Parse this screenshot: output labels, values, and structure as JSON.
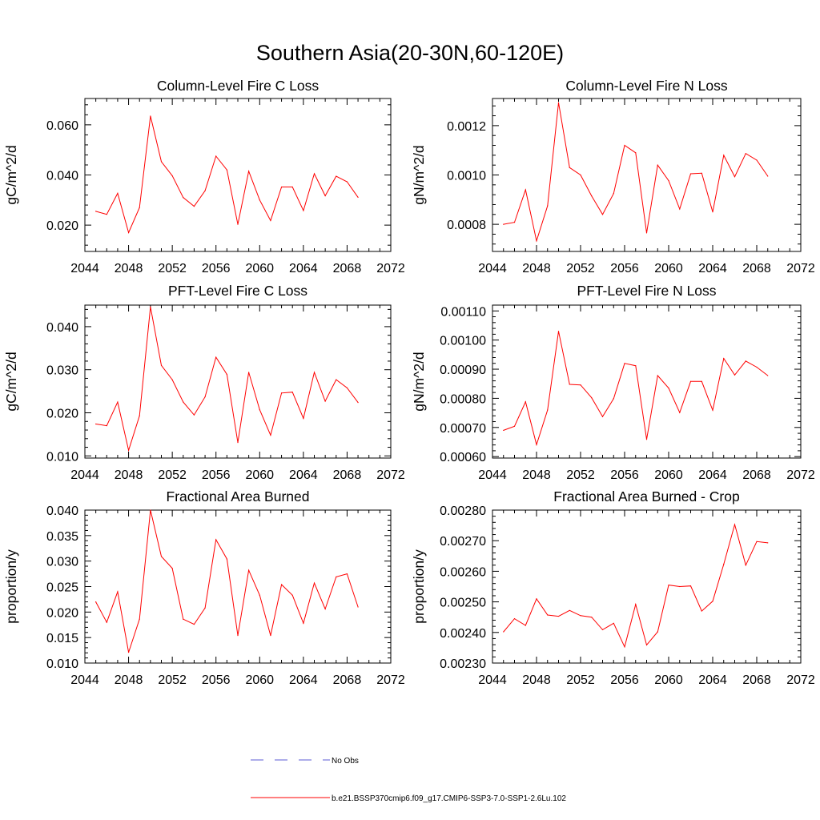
{
  "title": "Southern Asia(20-30N,60-120E)",
  "colors": {
    "model_line": "#ff0000",
    "obs_line": "#5b5bd6",
    "axis": "#000000"
  },
  "legend": {
    "obs_label": "No Obs",
    "model_label": "b.e21.BSSP370cmip6.f09_g17.CMIP6-SSP3-7.0-SSP1-2.6Lu.102"
  },
  "chart_data": [
    {
      "type": "line",
      "title": "Column-Level Fire C Loss",
      "xlabel": "",
      "ylabel": "gC/m^2/d",
      "xlim": [
        2044,
        2072
      ],
      "ylim": [
        0.0095,
        0.0705
      ],
      "xticks": [
        2044,
        2048,
        2052,
        2056,
        2060,
        2064,
        2068,
        2072
      ],
      "yticks": [
        0.02,
        0.04,
        0.06
      ],
      "yticklabels": [
        "0.020",
        "0.040",
        "0.060"
      ],
      "x": [
        2045,
        2046,
        2047,
        2048,
        2049,
        2050,
        2051,
        2052,
        2053,
        2054,
        2055,
        2056,
        2057,
        2058,
        2059,
        2060,
        2061,
        2062,
        2063,
        2064,
        2065,
        2066,
        2067,
        2068,
        2069
      ],
      "series": [
        {
          "values": [
            0.0255,
            0.0243,
            0.0327,
            0.017,
            0.027,
            0.0635,
            0.0453,
            0.0397,
            0.031,
            0.0275,
            0.0337,
            0.0475,
            0.042,
            0.0203,
            0.0415,
            0.03,
            0.0218,
            0.0352,
            0.0352,
            0.0258,
            0.0405,
            0.0317,
            0.0395,
            0.0373,
            0.0311
          ]
        }
      ]
    },
    {
      "type": "line",
      "title": "Column-Level Fire N Loss",
      "xlabel": "",
      "ylabel": "gN/m^2/d",
      "xlim": [
        2044,
        2072
      ],
      "ylim": [
        0.00069,
        0.00131
      ],
      "xticks": [
        2044,
        2048,
        2052,
        2056,
        2060,
        2064,
        2068,
        2072
      ],
      "yticks": [
        0.0008,
        0.001,
        0.0012
      ],
      "yticklabels": [
        "0.0008",
        "0.0010",
        "0.0012"
      ],
      "x": [
        2045,
        2046,
        2047,
        2048,
        2049,
        2050,
        2051,
        2052,
        2053,
        2054,
        2055,
        2056,
        2057,
        2058,
        2059,
        2060,
        2061,
        2062,
        2063,
        2064,
        2065,
        2066,
        2067,
        2068,
        2069
      ],
      "series": [
        {
          "values": [
            0.0008,
            0.000808,
            0.00094,
            0.000733,
            0.000875,
            0.001293,
            0.00103,
            0.001,
            0.000915,
            0.00084,
            0.000925,
            0.00112,
            0.00109,
            0.000765,
            0.00104,
            0.000977,
            0.000862,
            0.001005,
            0.001007,
            0.00085,
            0.00108,
            0.000993,
            0.001087,
            0.00106,
            0.000995
          ]
        }
      ]
    },
    {
      "type": "line",
      "title": "PFT-Level Fire C Loss",
      "xlabel": "",
      "ylabel": "gC/m^2/d",
      "xlim": [
        2044,
        2072
      ],
      "ylim": [
        0.0095,
        0.045
      ],
      "xticks": [
        2044,
        2048,
        2052,
        2056,
        2060,
        2064,
        2068,
        2072
      ],
      "yticks": [
        0.01,
        0.02,
        0.03,
        0.04
      ],
      "yticklabels": [
        "0.010",
        "0.020",
        "0.030",
        "0.040"
      ],
      "x": [
        2045,
        2046,
        2047,
        2048,
        2049,
        2050,
        2051,
        2052,
        2053,
        2054,
        2055,
        2056,
        2057,
        2058,
        2059,
        2060,
        2061,
        2062,
        2063,
        2064,
        2065,
        2066,
        2067,
        2068,
        2069
      ],
      "series": [
        {
          "values": [
            0.0174,
            0.017,
            0.0225,
            0.0113,
            0.0193,
            0.0446,
            0.031,
            0.0277,
            0.0225,
            0.0195,
            0.0237,
            0.0329,
            0.0289,
            0.0131,
            0.0294,
            0.0207,
            0.0148,
            0.0246,
            0.0248,
            0.0187,
            0.0294,
            0.0227,
            0.0277,
            0.0258,
            0.0224
          ]
        }
      ]
    },
    {
      "type": "line",
      "title": "PFT-Level Fire N Loss",
      "xlabel": "",
      "ylabel": "gN/m^2/d",
      "xlim": [
        2044,
        2072
      ],
      "ylim": [
        0.000595,
        0.00112
      ],
      "xticks": [
        2044,
        2048,
        2052,
        2056,
        2060,
        2064,
        2068,
        2072
      ],
      "yticks": [
        0.0006,
        0.0007,
        0.0008,
        0.0009,
        0.001,
        0.0011
      ],
      "yticklabels": [
        "0.00060",
        "0.00070",
        "0.00080",
        "0.00090",
        "0.00100",
        "0.00110"
      ],
      "x": [
        2045,
        2046,
        2047,
        2048,
        2049,
        2050,
        2051,
        2052,
        2053,
        2054,
        2055,
        2056,
        2057,
        2058,
        2059,
        2060,
        2061,
        2062,
        2063,
        2064,
        2065,
        2066,
        2067,
        2068,
        2069
      ],
      "series": [
        {
          "values": [
            0.00069,
            0.000704,
            0.000788,
            0.000641,
            0.00076,
            0.00103,
            0.000848,
            0.000846,
            0.000802,
            0.000737,
            0.000799,
            0.00092,
            0.000912,
            0.000659,
            0.000878,
            0.000835,
            0.000751,
            0.000858,
            0.000858,
            0.000759,
            0.000937,
            0.00088,
            0.000928,
            0.000907,
            0.000878
          ]
        }
      ]
    },
    {
      "type": "line",
      "title": "Fractional Area Burned",
      "xlabel": "",
      "ylabel": "proportion/y",
      "xlim": [
        2044,
        2072
      ],
      "ylim": [
        0.01,
        0.04
      ],
      "xticks": [
        2044,
        2048,
        2052,
        2056,
        2060,
        2064,
        2068,
        2072
      ],
      "yticks": [
        0.01,
        0.015,
        0.02,
        0.025,
        0.03,
        0.035,
        0.04
      ],
      "yticklabels": [
        "0.010",
        "0.015",
        "0.020",
        "0.025",
        "0.030",
        "0.035",
        "0.040"
      ],
      "x": [
        2045,
        2046,
        2047,
        2048,
        2049,
        2050,
        2051,
        2052,
        2053,
        2054,
        2055,
        2056,
        2057,
        2058,
        2059,
        2060,
        2061,
        2062,
        2063,
        2064,
        2065,
        2066,
        2067,
        2068,
        2069
      ],
      "series": [
        {
          "values": [
            0.022,
            0.018,
            0.024,
            0.0121,
            0.0186,
            0.04,
            0.0309,
            0.0286,
            0.0186,
            0.0176,
            0.0208,
            0.0342,
            0.0304,
            0.0154,
            0.0282,
            0.0233,
            0.0154,
            0.0254,
            0.0233,
            0.0178,
            0.0257,
            0.0206,
            0.0269,
            0.0275,
            0.021
          ]
        }
      ]
    },
    {
      "type": "line",
      "title": "Fractional Area Burned - Crop",
      "xlabel": "",
      "ylabel": "proportion/y",
      "xlim": [
        2044,
        2072
      ],
      "ylim": [
        0.0023,
        0.0028
      ],
      "xticks": [
        2044,
        2048,
        2052,
        2056,
        2060,
        2064,
        2068,
        2072
      ],
      "yticks": [
        0.0023,
        0.0024,
        0.0025,
        0.0026,
        0.0027,
        0.0028
      ],
      "yticklabels": [
        "0.00230",
        "0.00240",
        "0.00250",
        "0.00260",
        "0.00270",
        "0.00280"
      ],
      "x": [
        2045,
        2046,
        2047,
        2048,
        2049,
        2050,
        2051,
        2052,
        2053,
        2054,
        2055,
        2056,
        2057,
        2058,
        2059,
        2060,
        2061,
        2062,
        2063,
        2064,
        2065,
        2066,
        2067,
        2068,
        2069
      ],
      "series": [
        {
          "values": [
            0.002402,
            0.002445,
            0.002423,
            0.00251,
            0.002457,
            0.002453,
            0.002472,
            0.002455,
            0.00245,
            0.002409,
            0.00243,
            0.002353,
            0.002492,
            0.002359,
            0.002402,
            0.002555,
            0.00255,
            0.002552,
            0.00247,
            0.002502,
            0.002623,
            0.002753,
            0.00262,
            0.002697,
            0.002693
          ]
        }
      ]
    }
  ]
}
